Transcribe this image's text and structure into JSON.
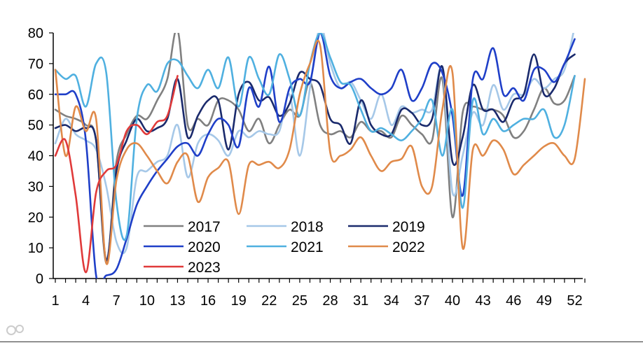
{
  "chart_data": {
    "type": "line",
    "title": "",
    "xlabel": "",
    "ylabel": "",
    "xlim": [
      1,
      53
    ],
    "ylim": [
      0,
      80
    ],
    "x_ticks": [
      1,
      4,
      7,
      10,
      13,
      16,
      19,
      22,
      25,
      28,
      31,
      34,
      37,
      40,
      43,
      46,
      49,
      52
    ],
    "y_ticks": [
      0,
      10,
      20,
      30,
      40,
      50,
      60,
      70,
      80
    ],
    "legend_position": "lower-left inside plot",
    "series": [
      {
        "name": "2017",
        "color": "#808080",
        "x": [
          1,
          2,
          3,
          4,
          5,
          6,
          7,
          8,
          9,
          10,
          11,
          12,
          13,
          14,
          15,
          16,
          17,
          18,
          19,
          20,
          21,
          22,
          23,
          24,
          25,
          26,
          27,
          28,
          29,
          30,
          31,
          32,
          33,
          34,
          35,
          36,
          37,
          38,
          39,
          40,
          41,
          42,
          43,
          44,
          45,
          46,
          47,
          48,
          49,
          50,
          51,
          52
        ],
        "values": [
          55,
          53,
          52,
          50,
          45,
          5,
          38,
          47,
          53,
          52,
          58,
          65,
          81,
          50,
          52,
          50,
          58,
          58,
          55,
          48,
          52,
          44,
          50,
          55,
          53,
          64,
          50,
          47,
          48,
          46,
          51,
          48,
          48,
          46,
          53,
          50,
          47,
          45,
          65,
          20,
          54,
          56,
          55,
          55,
          53,
          46,
          48,
          55,
          62,
          57,
          58,
          66
        ]
      },
      {
        "name": "2018",
        "color": "#a6c8e8",
        "x": [
          1,
          2,
          3,
          4,
          5,
          6,
          7,
          8,
          9,
          10,
          11,
          12,
          13,
          14,
          15,
          16,
          17,
          18,
          19,
          20,
          21,
          22,
          23,
          24,
          25,
          26,
          27,
          28,
          29,
          30,
          31,
          32,
          33,
          34,
          35,
          36,
          37,
          38,
          39,
          40,
          41,
          42,
          43,
          44,
          45,
          46,
          47,
          48,
          49,
          50,
          51,
          52
        ],
        "values": [
          44,
          52,
          47,
          45,
          42,
          30,
          12,
          10,
          33,
          35,
          38,
          40,
          50,
          33,
          44,
          47,
          45,
          40,
          48,
          46,
          48,
          47,
          48,
          60,
          40,
          62,
          82,
          70,
          62,
          64,
          58,
          52,
          60,
          50,
          56,
          54,
          55,
          55,
          68,
          28,
          40,
          54,
          50,
          63,
          55,
          60,
          60,
          65,
          62,
          65,
          68,
          82
        ]
      },
      {
        "name": "2019",
        "color": "#1a2a6c",
        "x": [
          1,
          2,
          3,
          4,
          5,
          6,
          7,
          8,
          9,
          10,
          11,
          12,
          13,
          14,
          15,
          16,
          17,
          18,
          19,
          20,
          21,
          22,
          23,
          24,
          25,
          26,
          27,
          28,
          29,
          30,
          31,
          32,
          33,
          34,
          35,
          36,
          37,
          38,
          39,
          40,
          41,
          42,
          43,
          44,
          45,
          46,
          47,
          48,
          49,
          50,
          51,
          52
        ],
        "values": [
          49,
          50,
          48,
          49,
          45,
          6,
          35,
          45,
          52,
          48,
          49,
          52,
          65,
          46,
          53,
          58,
          58,
          42,
          60,
          64,
          58,
          59,
          53,
          57,
          67,
          65,
          63,
          52,
          50,
          44,
          58,
          50,
          47,
          47,
          55,
          54,
          50,
          52,
          69,
          38,
          46,
          63,
          55,
          55,
          51,
          58,
          60,
          73,
          60,
          62,
          70,
          73
        ]
      },
      {
        "name": "2020",
        "color": "#1f3fc8",
        "x": [
          1,
          2,
          3,
          4,
          5,
          6,
          7,
          8,
          9,
          10,
          11,
          12,
          13,
          14,
          15,
          16,
          17,
          18,
          19,
          20,
          21,
          22,
          23,
          24,
          25,
          26,
          27,
          28,
          29,
          30,
          31,
          32,
          33,
          34,
          35,
          36,
          37,
          38,
          39,
          40,
          41,
          42,
          43,
          44,
          45,
          46,
          47,
          48,
          49,
          50,
          51,
          52
        ],
        "values": [
          60,
          60,
          60,
          45,
          1,
          1,
          3,
          13,
          24,
          30,
          35,
          39,
          43,
          44,
          40,
          47,
          52,
          50,
          43,
          62,
          56,
          69,
          51,
          62,
          65,
          64,
          80,
          66,
          62,
          64,
          65,
          62,
          60,
          62,
          68,
          58,
          62,
          70,
          67,
          53,
          27,
          65,
          65,
          75,
          60,
          62,
          58,
          68,
          68,
          64,
          70,
          78
        ]
      },
      {
        "name": "2021",
        "color": "#4fb0e0",
        "x": [
          1,
          2,
          3,
          4,
          5,
          6,
          7,
          8,
          9,
          10,
          11,
          12,
          13,
          14,
          15,
          16,
          17,
          18,
          19,
          20,
          21,
          22,
          23,
          24,
          25,
          26,
          27,
          28,
          29,
          30,
          31,
          32,
          33,
          34,
          35,
          36,
          37,
          38,
          39,
          40,
          41,
          42,
          43,
          44,
          45,
          46,
          47,
          48,
          49,
          50,
          51,
          52
        ],
        "values": [
          68,
          65,
          66,
          56,
          70,
          67,
          25,
          14,
          52,
          63,
          61,
          70,
          71,
          66,
          62,
          68,
          62,
          72,
          56,
          72,
          65,
          60,
          73,
          65,
          53,
          70,
          80,
          72,
          64,
          63,
          55,
          48,
          49,
          47,
          45,
          48,
          52,
          58,
          40,
          55,
          23,
          58,
          47,
          52,
          48,
          50,
          52,
          52,
          55,
          46,
          50,
          66
        ]
      },
      {
        "name": "2022",
        "color": "#e08a4a",
        "x": [
          1,
          2,
          3,
          4,
          5,
          6,
          7,
          8,
          9,
          10,
          11,
          12,
          13,
          14,
          15,
          16,
          17,
          18,
          19,
          20,
          21,
          22,
          23,
          24,
          25,
          26,
          27,
          28,
          29,
          30,
          31,
          32,
          33,
          34,
          35,
          36,
          37,
          38,
          39,
          40,
          41,
          42,
          43,
          44,
          45,
          46,
          47,
          48,
          49,
          50,
          51,
          52,
          53
        ],
        "values": [
          68,
          40,
          56,
          48,
          52,
          5,
          32,
          42,
          44,
          40,
          35,
          31,
          38,
          40,
          25,
          33,
          36,
          38,
          21,
          37,
          37,
          38,
          36,
          42,
          60,
          70,
          76,
          41,
          40,
          42,
          46,
          40,
          35,
          38,
          39,
          43,
          30,
          30,
          55,
          67,
          10,
          42,
          40,
          45,
          42,
          34,
          37,
          40,
          43,
          44,
          40,
          39,
          65
        ]
      },
      {
        "name": "2023",
        "color": "#e03a3a",
        "x": [
          1,
          2,
          3,
          4,
          5,
          6,
          7,
          8,
          9,
          10,
          11,
          12,
          13
        ],
        "values": [
          40,
          45,
          27,
          2,
          28,
          35,
          37,
          48,
          50,
          47,
          51,
          53,
          66
        ]
      }
    ]
  }
}
